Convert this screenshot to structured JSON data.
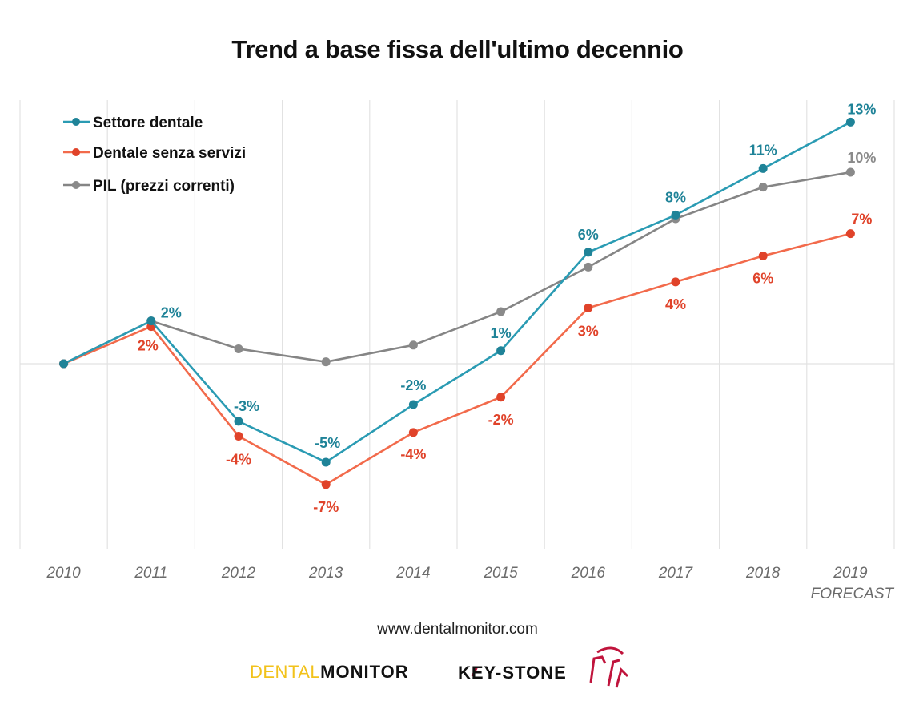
{
  "chart_data": {
    "type": "line",
    "title": "Trend a base fissa dell'ultimo decennio",
    "xlabel": "",
    "ylabel": "",
    "categories": [
      "2010",
      "2011",
      "2012",
      "2013",
      "2014",
      "2015",
      "2016",
      "2017",
      "2018",
      "2019"
    ],
    "category_sublabels": [
      "",
      "",
      "",
      "",
      "",
      "",
      "",
      "",
      "",
      "FORECAST"
    ],
    "ylim": [
      -10,
      14.5
    ],
    "grid": true,
    "legend_position": "top-left",
    "series": [
      {
        "name": "Settore dentale",
        "color": "#2a9bb3",
        "marker_color": "#1f8398",
        "label_color": "#1f8398",
        "values": [
          0,
          2.3,
          -3.1,
          -5.3,
          -2.2,
          0.7,
          6.0,
          8.0,
          10.5,
          13.0
        ],
        "labels": [
          "",
          "2%",
          "-3%",
          "-5%",
          "-2%",
          "1%",
          "6%",
          "8%",
          "11%",
          "13%"
        ]
      },
      {
        "name": "Dentale senza servizi",
        "color": "#f26a4b",
        "marker_color": "#e0432a",
        "label_color": "#e0432a",
        "values": [
          0,
          2.0,
          -3.9,
          -6.5,
          -3.7,
          -1.8,
          3.0,
          4.4,
          5.8,
          7.0
        ],
        "labels": [
          "",
          "2%",
          "-4%",
          "-7%",
          "-4%",
          "-2%",
          "3%",
          "4%",
          "6%",
          "7%"
        ]
      },
      {
        "name": "PIL (prezzi correnti)",
        "color": "#858585",
        "marker_color": "#8a8a8a",
        "label_color": "#8a8a8a",
        "values": [
          0,
          2.3,
          0.8,
          0.1,
          1.0,
          2.8,
          5.2,
          7.8,
          9.5,
          10.3
        ],
        "labels": [
          "",
          "",
          "",
          "",
          "",
          "",
          "",
          "",
          "",
          "10%"
        ]
      }
    ]
  },
  "footer": {
    "website": "www.dentalmonitor.com",
    "logo_dentalmonitor_light": "DENTAL",
    "logo_dentalmonitor_bold": "MONITOR",
    "logo_keystone": "KEY-STONE"
  }
}
